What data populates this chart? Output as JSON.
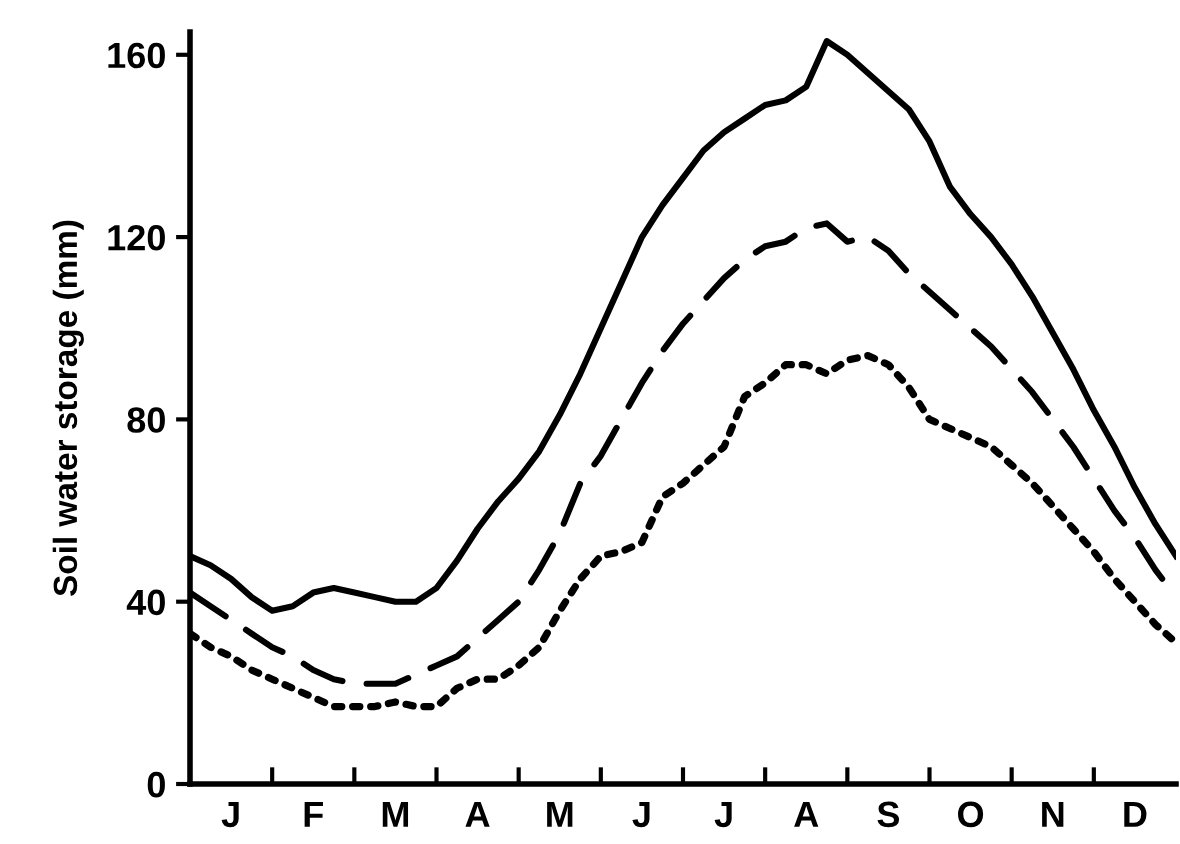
{
  "chart_data": {
    "type": "line",
    "ylabel": "Soil water storage (mm)",
    "ylim": [
      0,
      165
    ],
    "yticks": [
      0,
      40,
      80,
      120,
      160
    ],
    "categories": [
      null,
      null,
      "J",
      null,
      null,
      null,
      "F",
      null,
      null,
      null,
      "M",
      null,
      null,
      null,
      "A",
      null,
      null,
      null,
      "M",
      null,
      null,
      null,
      "J",
      null,
      null,
      null,
      "J",
      null,
      null,
      null,
      "A",
      null,
      null,
      null,
      "S",
      null,
      null,
      null,
      "O",
      null,
      null,
      null,
      "N",
      null,
      null,
      null,
      "D",
      null,
      null
    ],
    "grid": false,
    "marker": "none",
    "series": [
      {
        "color": "#000000",
        "line_style": "solid",
        "values": [
          50,
          48,
          45,
          41,
          38,
          39,
          42,
          43,
          42,
          41,
          40,
          40,
          43,
          49,
          56,
          62,
          67,
          73,
          81,
          90,
          100,
          110,
          120,
          127,
          133,
          139,
          143,
          146,
          149,
          150,
          153,
          163,
          160,
          156,
          152,
          148,
          141,
          131,
          125,
          120,
          114,
          107,
          99,
          91,
          82,
          74,
          65,
          57,
          50
        ]
      },
      {
        "color": "#000000",
        "line_style": "dashed",
        "values": [
          42,
          39,
          36,
          33,
          30,
          28,
          25,
          23,
          22,
          22,
          22,
          24,
          26,
          28,
          32,
          36,
          40,
          47,
          55,
          66,
          72,
          80,
          88,
          95,
          101,
          106,
          111,
          115,
          118,
          119,
          122,
          123,
          119,
          120,
          117,
          112,
          108,
          104,
          100,
          96,
          91,
          86,
          80,
          74,
          67,
          60,
          54,
          47,
          41
        ]
      },
      {
        "color": "#000000",
        "line_style": "dotted",
        "values": [
          33,
          30,
          28,
          25,
          23,
          21,
          19,
          17,
          17,
          17,
          18,
          17,
          17,
          21,
          23,
          23,
          26,
          30,
          38,
          45,
          50,
          51,
          53,
          63,
          66,
          70,
          74,
          85,
          88,
          92,
          92,
          90,
          93,
          94,
          92,
          87,
          80,
          78,
          76,
          74,
          70,
          66,
          61,
          56,
          51,
          45,
          40,
          35,
          31
        ]
      }
    ]
  }
}
